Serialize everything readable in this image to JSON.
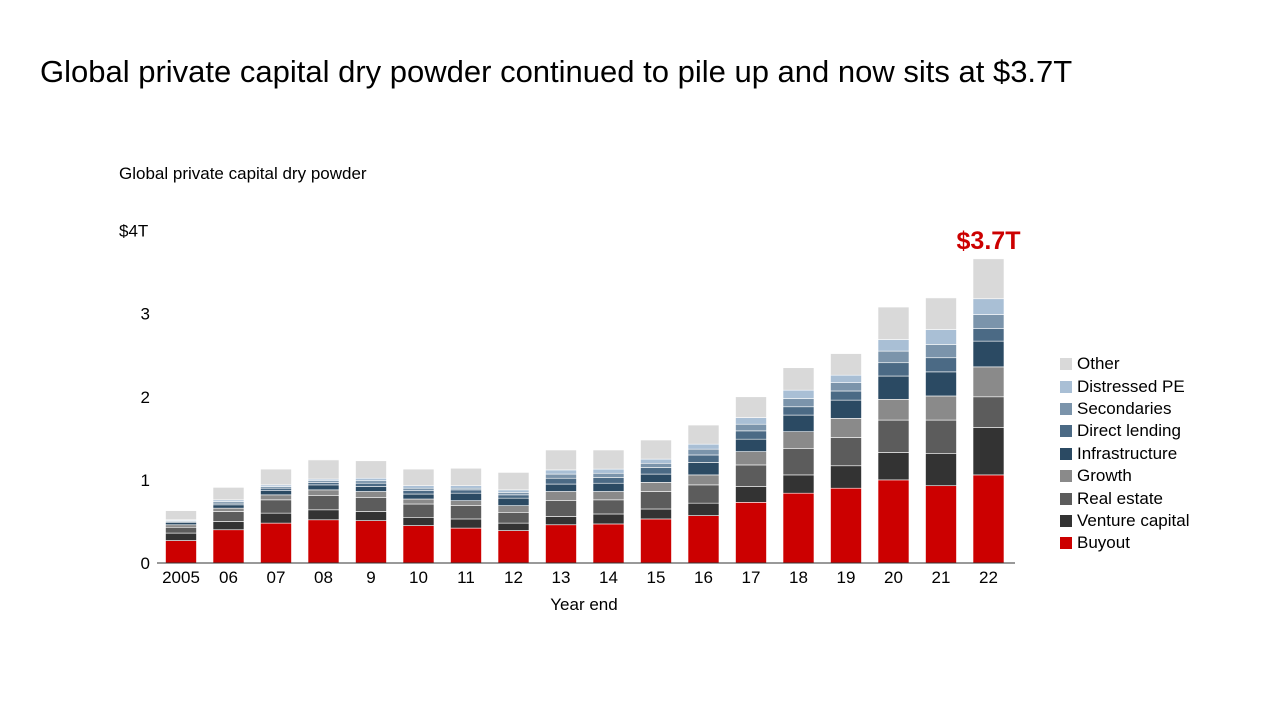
{
  "slide_title": "Global private capital dry powder continued to pile up and now sits at $3.7T",
  "chart_data": {
    "type": "bar",
    "stacked": true,
    "title": "Global private capital dry powder",
    "xlabel": "Year end",
    "ylabel": "",
    "ylim": [
      0,
      4
    ],
    "y_ticks": [
      {
        "value": 0,
        "label": "0"
      },
      {
        "value": 1,
        "label": "1"
      },
      {
        "value": 2,
        "label": "2"
      },
      {
        "value": 3,
        "label": "3"
      },
      {
        "value": 4,
        "label": "$4T"
      }
    ],
    "categories": [
      "2005",
      "06",
      "07",
      "08",
      "9",
      "10",
      "11",
      "12",
      "13",
      "14",
      "15",
      "16",
      "17",
      "18",
      "19",
      "20",
      "21",
      "22"
    ],
    "series": [
      {
        "name": "Buyout",
        "color": "#cc0000",
        "values": [
          0.27,
          0.4,
          0.48,
          0.52,
          0.51,
          0.45,
          0.42,
          0.39,
          0.46,
          0.47,
          0.53,
          0.57,
          0.73,
          0.84,
          0.9,
          1.0,
          0.93,
          1.06
        ]
      },
      {
        "name": "Venture capital",
        "color": "#333333",
        "values": [
          0.09,
          0.1,
          0.12,
          0.12,
          0.11,
          0.1,
          0.11,
          0.09,
          0.1,
          0.12,
          0.12,
          0.15,
          0.19,
          0.22,
          0.27,
          0.33,
          0.39,
          0.57
        ]
      },
      {
        "name": "Real estate",
        "color": "#5c5c5c",
        "values": [
          0.07,
          0.12,
          0.16,
          0.17,
          0.17,
          0.16,
          0.16,
          0.13,
          0.19,
          0.17,
          0.21,
          0.22,
          0.26,
          0.32,
          0.34,
          0.39,
          0.4,
          0.37
        ]
      },
      {
        "name": "Growth",
        "color": "#8a8a8a",
        "values": [
          0.03,
          0.04,
          0.06,
          0.07,
          0.07,
          0.06,
          0.06,
          0.08,
          0.11,
          0.1,
          0.11,
          0.12,
          0.16,
          0.2,
          0.23,
          0.25,
          0.29,
          0.36
        ]
      },
      {
        "name": "Infrastructure",
        "color": "#2b4a63",
        "values": [
          0.03,
          0.04,
          0.05,
          0.06,
          0.06,
          0.06,
          0.09,
          0.09,
          0.09,
          0.1,
          0.1,
          0.15,
          0.15,
          0.2,
          0.22,
          0.28,
          0.29,
          0.31
        ]
      },
      {
        "name": "Direct lending",
        "color": "#4b6a85",
        "values": [
          0.01,
          0.02,
          0.03,
          0.03,
          0.04,
          0.04,
          0.04,
          0.04,
          0.07,
          0.07,
          0.08,
          0.09,
          0.1,
          0.1,
          0.11,
          0.16,
          0.17,
          0.15
        ]
      },
      {
        "name": "Secondaries",
        "color": "#7b94ab",
        "values": [
          0.01,
          0.02,
          0.02,
          0.02,
          0.03,
          0.03,
          0.02,
          0.03,
          0.05,
          0.05,
          0.05,
          0.07,
          0.08,
          0.1,
          0.1,
          0.14,
          0.16,
          0.17
        ]
      },
      {
        "name": "Distressed PE",
        "color": "#a9bfd5",
        "values": [
          0.01,
          0.02,
          0.02,
          0.02,
          0.03,
          0.03,
          0.03,
          0.03,
          0.05,
          0.05,
          0.05,
          0.06,
          0.08,
          0.1,
          0.09,
          0.14,
          0.18,
          0.19
        ]
      },
      {
        "name": "Other",
        "color": "#d9d9d9",
        "values": [
          0.11,
          0.15,
          0.19,
          0.23,
          0.21,
          0.2,
          0.21,
          0.21,
          0.24,
          0.23,
          0.23,
          0.23,
          0.25,
          0.27,
          0.26,
          0.39,
          0.38,
          0.48
        ]
      }
    ],
    "legend_position": "right",
    "legend_order": [
      "Other",
      "Distressed PE",
      "Secondaries",
      "Direct lending",
      "Infrastructure",
      "Growth",
      "Real estate",
      "Venture capital",
      "Buyout"
    ],
    "annotation": {
      "text": "$3.7T",
      "category": "22",
      "color": "#cc0000"
    }
  }
}
